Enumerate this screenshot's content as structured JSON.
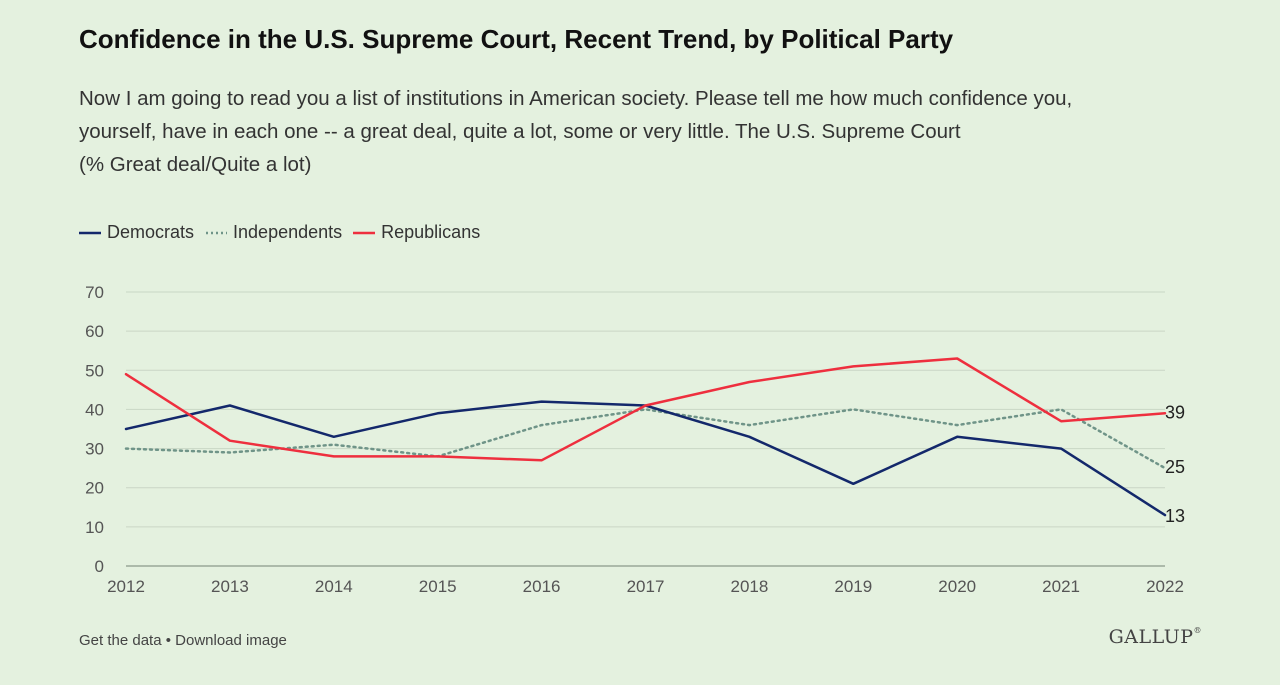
{
  "header": {
    "title": "Confidence in the U.S. Supreme Court, Recent Trend, by Political Party",
    "subtitle_lines": [
      "Now I am going to read you a list of institutions in American society. Please tell me how much confidence you,",
      "yourself, have in each one -- a great deal, quite a lot, some or very little. The U.S. Supreme Court",
      "(% Great deal/Quite a lot)"
    ]
  },
  "footer": {
    "get_data": "Get the data",
    "separator": " • ",
    "download": "Download image",
    "brand": "GALLUP",
    "brand_mark": "®"
  },
  "chart_data": {
    "type": "line",
    "title": "Confidence in the U.S. Supreme Court, Recent Trend, by Political Party",
    "xlabel": "",
    "ylabel": "",
    "ylim": [
      0,
      70
    ],
    "yticks": [
      "0",
      "10",
      "20",
      "30",
      "40",
      "50",
      "60",
      "70"
    ],
    "grid": true,
    "legend_position": "top-left",
    "categories": [
      "2012",
      "2013",
      "2014",
      "2015",
      "2016",
      "2017",
      "2018",
      "2019",
      "2020",
      "2021",
      "2022"
    ],
    "series": [
      {
        "name": "Democrats",
        "color": "#13286b",
        "style": "solid",
        "values": [
          35,
          41,
          33,
          39,
          42,
          41,
          33,
          21,
          33,
          30,
          13
        ],
        "end_label": "13"
      },
      {
        "name": "Independents",
        "color": "#6f9488",
        "style": "dotted",
        "values": [
          30,
          29,
          31,
          28,
          36,
          40,
          36,
          40,
          36,
          40,
          25
        ],
        "end_label": "25"
      },
      {
        "name": "Republicans",
        "color": "#ee2f3e",
        "style": "solid",
        "values": [
          49,
          32,
          28,
          28,
          27,
          41,
          47,
          51,
          53,
          37,
          39
        ],
        "end_label": "39"
      }
    ]
  }
}
